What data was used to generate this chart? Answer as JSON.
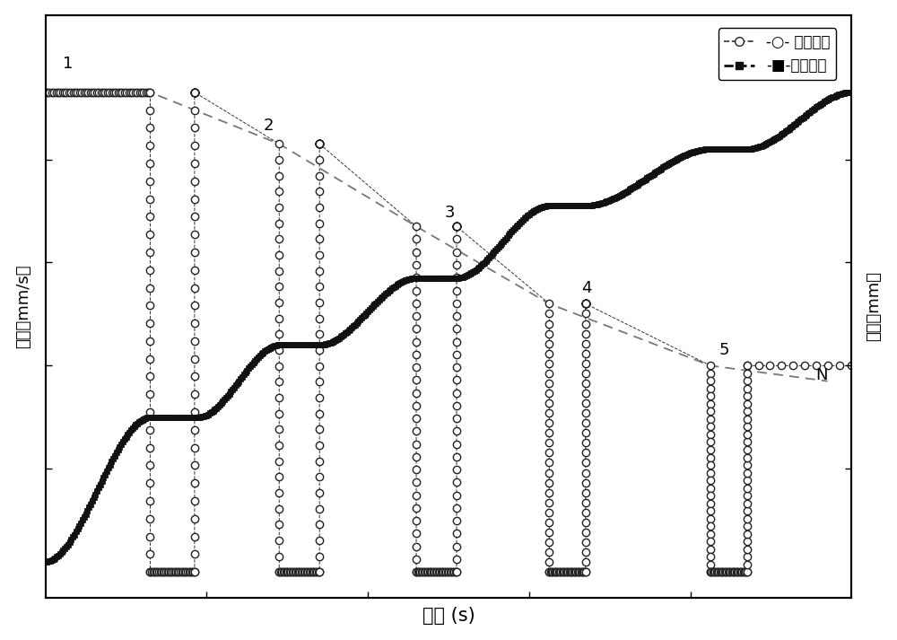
{
  "title": "",
  "xlabel": "时间 (s)",
  "ylabel_left": "速度（mm/s）",
  "ylabel_right": "位移（mm）",
  "legend_velocity": "-○- 速度曲线",
  "legend_displacement": "-■-位移曲线",
  "background_color": "#ffffff",
  "dashed_line_color": "#888888",
  "velocity_color": "#222222",
  "displacement_color": "#111111",
  "label_1": [
    "1",
    0.022,
    0.97
  ],
  "label_2": [
    "2",
    0.27,
    0.85
  ],
  "label_3": [
    "3",
    0.495,
    0.68
  ],
  "label_4": [
    "4",
    0.665,
    0.535
  ],
  "label_5": [
    "5",
    0.835,
    0.415
  ],
  "label_N": [
    "N",
    0.955,
    0.365
  ]
}
